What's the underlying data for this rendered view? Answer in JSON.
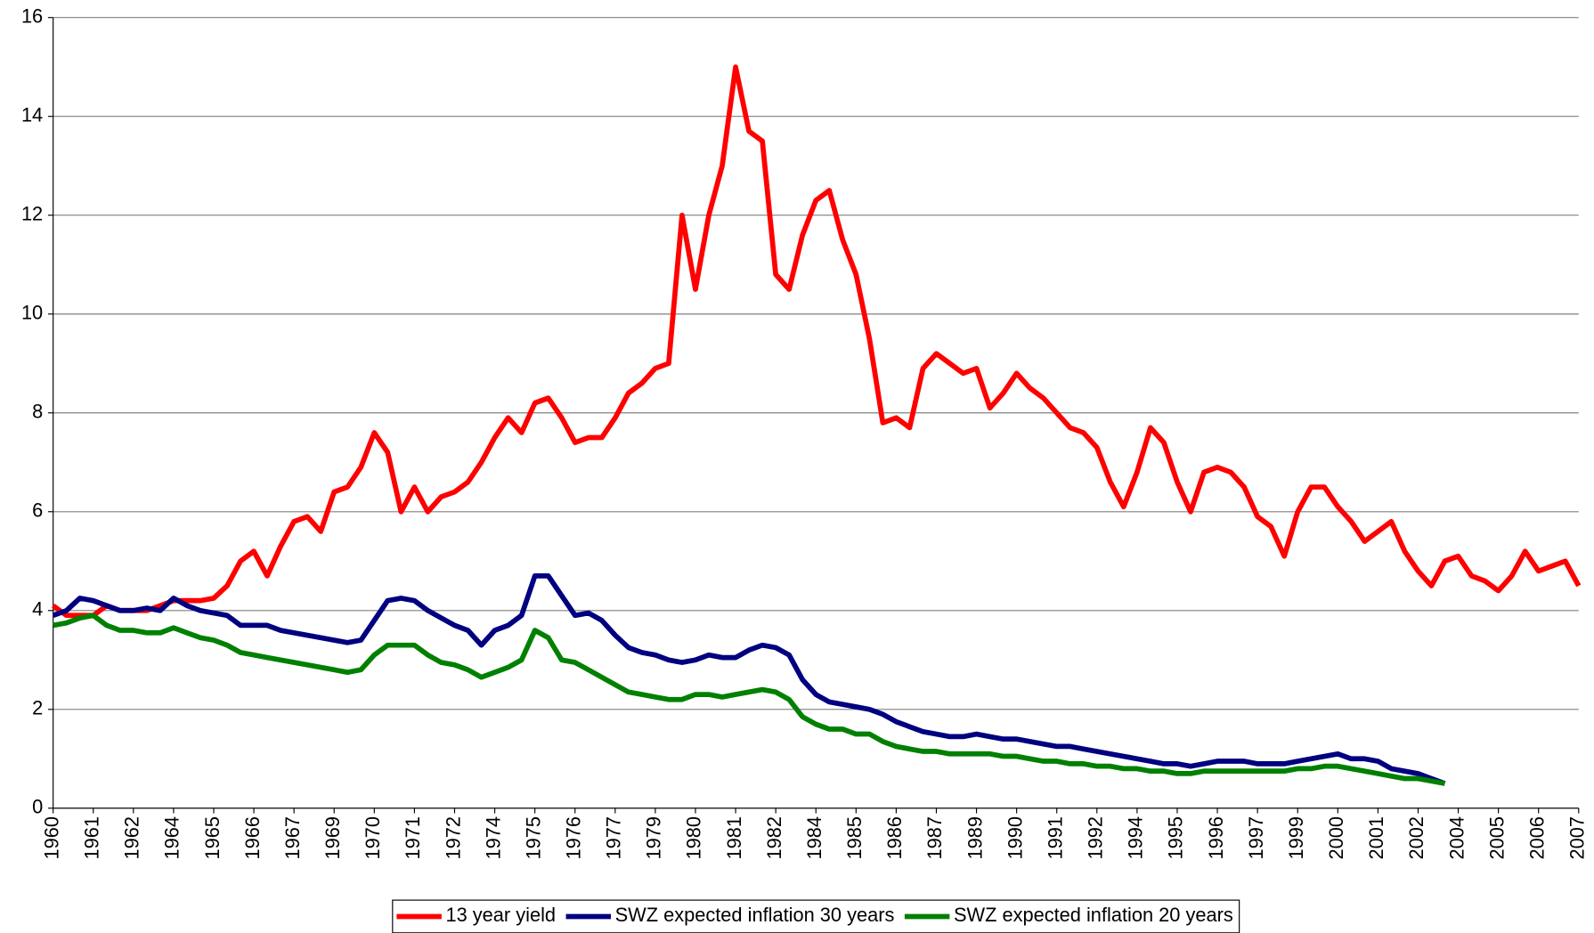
{
  "chart_data": {
    "type": "line",
    "categories": [
      "1960",
      null,
      null,
      "1961",
      null,
      null,
      "1962",
      null,
      null,
      "1964",
      null,
      null,
      "1965",
      null,
      null,
      "1966",
      null,
      null,
      "1967",
      null,
      null,
      "1969",
      null,
      null,
      "1970",
      null,
      null,
      "1971",
      null,
      null,
      "1972",
      null,
      null,
      "1974",
      null,
      null,
      "1975",
      null,
      null,
      "1976",
      null,
      null,
      "1977",
      null,
      null,
      "1979",
      null,
      null,
      "1980",
      null,
      null,
      "1981",
      null,
      null,
      "1982",
      null,
      null,
      "1984",
      null,
      null,
      "1985",
      null,
      null,
      "1986",
      null,
      null,
      "1987",
      null,
      null,
      "1989",
      null,
      null,
      "1990",
      null,
      null,
      "1991",
      null,
      null,
      "1992",
      null,
      null,
      "1994",
      null,
      null,
      "1995",
      null,
      null,
      "1996",
      null,
      null,
      "1997",
      null,
      null,
      "1999",
      null,
      null,
      "2000",
      null,
      null,
      "2001",
      null,
      null,
      "2002",
      null,
      null,
      "2004",
      null,
      null,
      "2005",
      null,
      null,
      "2006",
      null,
      null,
      "2007"
    ],
    "series": [
      {
        "name": "13 year yield",
        "color": "#ff0000",
        "values": [
          4.1,
          3.9,
          3.9,
          3.9,
          4.1,
          4.0,
          4.0,
          4.0,
          4.1,
          4.2,
          4.2,
          4.2,
          4.25,
          4.5,
          5.0,
          5.2,
          4.7,
          5.3,
          5.8,
          5.9,
          5.6,
          6.4,
          6.5,
          6.9,
          7.6,
          7.2,
          6.0,
          6.5,
          6.0,
          6.3,
          6.4,
          6.6,
          7.0,
          7.5,
          7.9,
          7.6,
          8.2,
          8.3,
          7.9,
          7.4,
          7.5,
          7.5,
          7.9,
          8.4,
          8.6,
          8.9,
          9.0,
          12.0,
          10.5,
          12.0,
          13.0,
          15.0,
          13.7,
          13.5,
          10.8,
          10.5,
          11.6,
          12.3,
          12.5,
          11.5,
          10.8,
          9.5,
          7.8,
          7.9,
          7.7,
          8.9,
          9.2,
          9.0,
          8.8,
          8.9,
          8.1,
          8.4,
          8.8,
          8.5,
          8.3,
          8.0,
          7.7,
          7.6,
          7.3,
          6.6,
          6.1,
          6.8,
          7.7,
          7.4,
          6.6,
          6.0,
          6.8,
          6.9,
          6.8,
          6.5,
          5.9,
          5.7,
          5.1,
          6.0,
          6.5,
          6.5,
          6.1,
          5.8,
          5.4,
          5.6,
          5.8,
          5.2,
          4.8,
          4.5,
          5.0,
          5.1,
          4.7,
          4.6,
          4.4,
          4.7,
          5.2,
          4.8,
          4.9,
          5.0,
          4.5
        ]
      },
      {
        "name": "SWZ expected inflation 30 years",
        "color": "#000080",
        "values": [
          3.9,
          4.0,
          4.25,
          4.2,
          4.1,
          4.0,
          4.0,
          4.05,
          4.0,
          4.25,
          4.1,
          4.0,
          3.95,
          3.9,
          3.7,
          3.7,
          3.7,
          3.6,
          3.55,
          3.5,
          3.45,
          3.4,
          3.35,
          3.4,
          3.8,
          4.2,
          4.25,
          4.2,
          4.0,
          3.85,
          3.7,
          3.6,
          3.3,
          3.6,
          3.7,
          3.9,
          4.7,
          4.7,
          4.3,
          3.9,
          3.95,
          3.8,
          3.5,
          3.25,
          3.15,
          3.1,
          3.0,
          2.95,
          3.0,
          3.1,
          3.05,
          3.05,
          3.2,
          3.3,
          3.25,
          3.1,
          2.6,
          2.3,
          2.15,
          2.1,
          2.05,
          2.0,
          1.9,
          1.75,
          1.65,
          1.55,
          1.5,
          1.45,
          1.45,
          1.5,
          1.45,
          1.4,
          1.4,
          1.35,
          1.3,
          1.25,
          1.25,
          1.2,
          1.15,
          1.1,
          1.05,
          1.0,
          0.95,
          0.9,
          0.9,
          0.85,
          0.9,
          0.95,
          0.95,
          0.95,
          0.9,
          0.9,
          0.9,
          0.95,
          1.0,
          1.05,
          1.1,
          1.0,
          1.0,
          0.95,
          0.8,
          0.75,
          0.7,
          0.6,
          0.5,
          null,
          null,
          null,
          null,
          null,
          null,
          null,
          null,
          null,
          null
        ]
      },
      {
        "name": "SWZ expected inflation 20 years",
        "color": "#008000",
        "values": [
          3.7,
          3.75,
          3.85,
          3.9,
          3.7,
          3.6,
          3.6,
          3.55,
          3.55,
          3.65,
          3.55,
          3.45,
          3.4,
          3.3,
          3.15,
          3.1,
          3.05,
          3.0,
          2.95,
          2.9,
          2.85,
          2.8,
          2.75,
          2.8,
          3.1,
          3.3,
          3.3,
          3.3,
          3.1,
          2.95,
          2.9,
          2.8,
          2.65,
          2.75,
          2.85,
          3.0,
          3.6,
          3.45,
          3.0,
          2.95,
          2.8,
          2.65,
          2.5,
          2.35,
          2.3,
          2.25,
          2.2,
          2.2,
          2.3,
          2.3,
          2.25,
          2.3,
          2.35,
          2.4,
          2.35,
          2.2,
          1.85,
          1.7,
          1.6,
          1.6,
          1.5,
          1.5,
          1.35,
          1.25,
          1.2,
          1.15,
          1.15,
          1.1,
          1.1,
          1.1,
          1.1,
          1.05,
          1.05,
          1.0,
          0.95,
          0.95,
          0.9,
          0.9,
          0.85,
          0.85,
          0.8,
          0.8,
          0.75,
          0.75,
          0.7,
          0.7,
          0.75,
          0.75,
          0.75,
          0.75,
          0.75,
          0.75,
          0.75,
          0.8,
          0.8,
          0.85,
          0.85,
          0.8,
          0.75,
          0.7,
          0.65,
          0.6,
          0.6,
          0.55,
          0.5,
          null,
          null,
          null,
          null,
          null,
          null,
          null,
          null,
          null,
          null
        ]
      }
    ],
    "ylim": [
      0,
      16
    ],
    "yticks": [
      0,
      2,
      4,
      6,
      8,
      10,
      12,
      14,
      16
    ],
    "grid": true,
    "legend": "bottom"
  }
}
